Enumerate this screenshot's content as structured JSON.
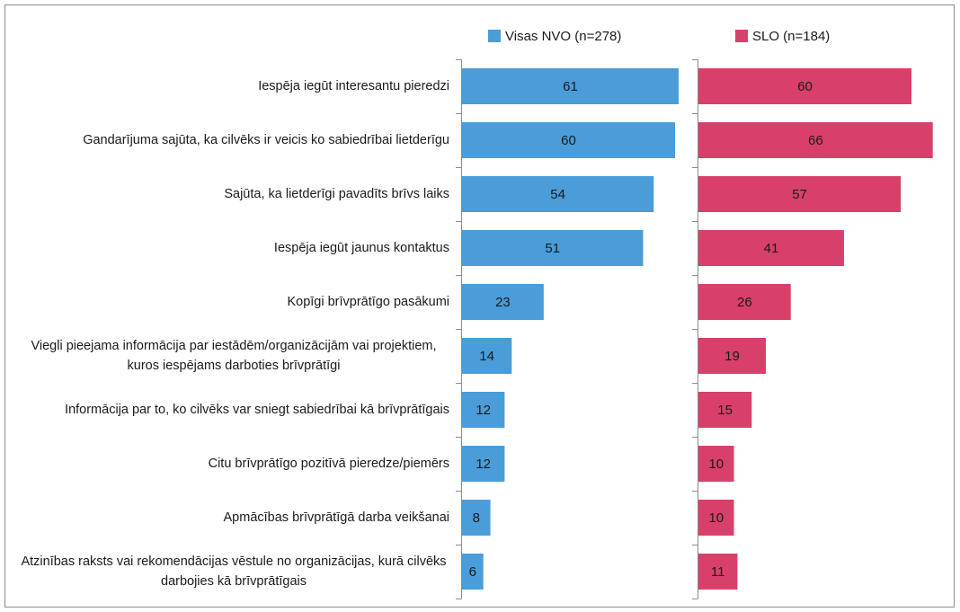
{
  "chart_data": {
    "type": "bar",
    "orientation": "horizontal",
    "layout": "panels",
    "categories": [
      "Iespēja iegūt interesantu pieredzi",
      "Gandarījuma sajūta, ka cilvēks ir veicis ko sabiedrībai lietderīgu",
      "Sajūta, ka lietderīgi pavadīts brīvs laiks",
      "Iespēja iegūt jaunus kontaktus",
      "Kopīgi brīvprātīgo pasākumi",
      "Viegli pieejama informācija par iestādēm/organizācijām vai projektiem, kuros iespējams darboties brīvprātīgi",
      "Informācija par to, ko cilvēks var sniegt sabiedrībai kā brīvprātīgais",
      "Citu brīvprātīgo pozitīvā pieredze/piemērs",
      "Apmācības brīvprātīgā darba veikšanai",
      "Atzinības raksts vai rekomendācijas vēstule no organizācijas, kurā cilvēks darbojies kā brīvprātīgais"
    ],
    "series": [
      {
        "name": "Visas NVO (n=278)",
        "color": "#4a9dd8",
        "values": [
          61,
          60,
          54,
          51,
          23,
          14,
          12,
          12,
          8,
          6
        ]
      },
      {
        "name": "SLO (n=184)",
        "color": "#d8406a",
        "values": [
          60,
          66,
          57,
          41,
          26,
          19,
          15,
          10,
          10,
          11
        ]
      }
    ],
    "legend": "top"
  }
}
